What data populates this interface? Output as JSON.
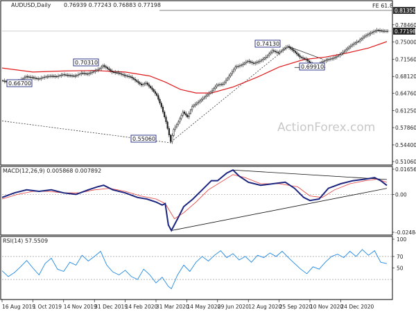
{
  "chart_data": [
    {
      "type": "candlestick",
      "symbol_timeframe": "AUDUSD,Daily",
      "ohlc_header": "0.76939 0.77243 0.76883 0.77198",
      "last_price": "0.77198",
      "fib_label": "FE 61.8",
      "fib_level": "0.81350",
      "price_ticks": [
        "0.81350",
        "0.78460",
        "0.75000",
        "0.71560",
        "0.68120",
        "0.64760",
        "0.61250",
        "0.57860",
        "0.54400",
        "0.51060"
      ],
      "ylim": [
        0.5106,
        0.8135
      ],
      "annotations": [
        {
          "text": "0.66700",
          "value": 0.667
        },
        {
          "text": "0.70310",
          "value": 0.7031
        },
        {
          "text": "0.55060",
          "value": 0.5506
        },
        {
          "text": "0.74130",
          "value": 0.7413
        },
        {
          "text": "0.69910",
          "value": 0.6991
        }
      ],
      "watermark": "ActionForex.com",
      "price_path": [
        [
          0,
          0.673
        ],
        [
          4,
          0.67
        ],
        [
          8,
          0.667
        ],
        [
          12,
          0.673
        ],
        [
          16,
          0.681
        ],
        [
          20,
          0.679
        ],
        [
          24,
          0.676
        ],
        [
          28,
          0.68
        ],
        [
          32,
          0.682
        ],
        [
          36,
          0.681
        ],
        [
          40,
          0.685
        ],
        [
          44,
          0.683
        ],
        [
          48,
          0.682
        ],
        [
          52,
          0.688
        ],
        [
          56,
          0.686
        ],
        [
          60,
          0.691
        ],
        [
          64,
          0.697
        ],
        [
          66,
          0.703
        ],
        [
          68,
          0.699
        ],
        [
          72,
          0.69
        ],
        [
          76,
          0.688
        ],
        [
          80,
          0.683
        ],
        [
          84,
          0.68
        ],
        [
          88,
          0.671
        ],
        [
          91,
          0.664
        ],
        [
          94,
          0.668
        ],
        [
          98,
          0.655
        ],
        [
          101,
          0.643
        ],
        [
          104,
          0.62
        ],
        [
          107,
          0.59
        ],
        [
          110,
          0.5506
        ],
        [
          112,
          0.575
        ],
        [
          115,
          0.59
        ],
        [
          118,
          0.61
        ],
        [
          121,
          0.6
        ],
        [
          124,
          0.621
        ],
        [
          128,
          0.63
        ],
        [
          132,
          0.64
        ],
        [
          136,
          0.65
        ],
        [
          140,
          0.664
        ],
        [
          144,
          0.666
        ],
        [
          148,
          0.682
        ],
        [
          152,
          0.7
        ],
        [
          156,
          0.704
        ],
        [
          160,
          0.712
        ],
        [
          164,
          0.707
        ],
        [
          168,
          0.712
        ],
        [
          172,
          0.72
        ],
        [
          176,
          0.733
        ],
        [
          180,
          0.728
        ],
        [
          184,
          0.738
        ],
        [
          186,
          0.7413
        ],
        [
          190,
          0.732
        ],
        [
          194,
          0.72
        ],
        [
          198,
          0.715
        ],
        [
          202,
          0.704
        ],
        [
          205,
          0.6991
        ],
        [
          208,
          0.71
        ],
        [
          212,
          0.715
        ],
        [
          216,
          0.718
        ],
        [
          220,
          0.725
        ],
        [
          224,
          0.735
        ],
        [
          228,
          0.745
        ],
        [
          232,
          0.752
        ],
        [
          236,
          0.762
        ],
        [
          240,
          0.768
        ],
        [
          244,
          0.774
        ],
        [
          248,
          0.772
        ],
        [
          250,
          0.772
        ]
      ],
      "ma_path": [
        [
          0,
          0.698
        ],
        [
          20,
          0.69
        ],
        [
          40,
          0.692
        ],
        [
          60,
          0.693
        ],
        [
          80,
          0.69
        ],
        [
          96,
          0.682
        ],
        [
          106,
          0.67
        ],
        [
          116,
          0.655
        ],
        [
          126,
          0.648
        ],
        [
          136,
          0.648
        ],
        [
          150,
          0.66
        ],
        [
          166,
          0.68
        ],
        [
          180,
          0.7
        ],
        [
          196,
          0.715
        ],
        [
          210,
          0.72
        ],
        [
          224,
          0.728
        ],
        [
          238,
          0.738
        ],
        [
          250,
          0.751
        ]
      ],
      "trend_lines": [
        {
          "from": [
            0,
            0.592
          ],
          "to": [
            110,
            0.548
          ],
          "style": "dashed"
        },
        {
          "from": [
            110,
            0.5506
          ],
          "to": [
            186,
            0.7413
          ],
          "style": "dashed"
        },
        {
          "from": [
            186,
            0.7413
          ],
          "to": [
            208,
            0.716
          ],
          "style": "solid"
        },
        {
          "from": [
            190,
            0.6991
          ],
          "to": [
            210,
            0.6991
          ],
          "style": "solid"
        }
      ],
      "x_range": [
        0,
        250
      ]
    },
    {
      "type": "line",
      "label": "MACD(12,26,9) 0.005868 0.007892",
      "ticks": [
        "0.016567",
        "0.00",
        "-0.02484"
      ],
      "ylim": [
        -0.02484,
        0.016567
      ],
      "macd": [
        [
          0,
          -0.002
        ],
        [
          8,
          0.001
        ],
        [
          16,
          0.003
        ],
        [
          24,
          0.002
        ],
        [
          32,
          0.003
        ],
        [
          40,
          0.001
        ],
        [
          48,
          0.0
        ],
        [
          56,
          0.003
        ],
        [
          62,
          0.005
        ],
        [
          66,
          0.006
        ],
        [
          72,
          0.003
        ],
        [
          80,
          0.001
        ],
        [
          88,
          -0.002
        ],
        [
          94,
          -0.003
        ],
        [
          100,
          -0.005
        ],
        [
          104,
          -0.007
        ],
        [
          106,
          -0.006
        ],
        [
          108,
          -0.02
        ],
        [
          110,
          -0.0237
        ],
        [
          114,
          -0.016
        ],
        [
          118,
          -0.008
        ],
        [
          124,
          -0.003
        ],
        [
          130,
          0.003
        ],
        [
          136,
          0.009
        ],
        [
          140,
          0.009
        ],
        [
          146,
          0.014
        ],
        [
          150,
          0.016
        ],
        [
          154,
          0.012
        ],
        [
          160,
          0.008
        ],
        [
          168,
          0.006
        ],
        [
          176,
          0.007
        ],
        [
          184,
          0.008
        ],
        [
          190,
          0.004
        ],
        [
          196,
          -0.002
        ],
        [
          200,
          -0.004
        ],
        [
          206,
          -0.003
        ],
        [
          212,
          0.004
        ],
        [
          220,
          0.007
        ],
        [
          228,
          0.009
        ],
        [
          236,
          0.01
        ],
        [
          242,
          0.011
        ],
        [
          246,
          0.009
        ],
        [
          250,
          0.0059
        ]
      ],
      "signal": [
        [
          0,
          -0.003
        ],
        [
          10,
          0.0
        ],
        [
          20,
          0.002
        ],
        [
          30,
          0.002
        ],
        [
          40,
          0.001
        ],
        [
          50,
          0.001
        ],
        [
          60,
          0.003
        ],
        [
          70,
          0.004
        ],
        [
          80,
          0.002
        ],
        [
          90,
          -0.001
        ],
        [
          100,
          -0.003
        ],
        [
          106,
          -0.006
        ],
        [
          112,
          -0.016
        ],
        [
          118,
          -0.012
        ],
        [
          126,
          -0.005
        ],
        [
          134,
          0.003
        ],
        [
          142,
          0.008
        ],
        [
          150,
          0.013
        ],
        [
          158,
          0.011
        ],
        [
          168,
          0.007
        ],
        [
          180,
          0.007
        ],
        [
          192,
          0.005
        ],
        [
          200,
          -0.001
        ],
        [
          208,
          -0.002
        ],
        [
          216,
          0.003
        ],
        [
          226,
          0.007
        ],
        [
          236,
          0.009
        ],
        [
          244,
          0.01
        ],
        [
          250,
          0.0079
        ]
      ],
      "trend_lines": [
        {
          "from": [
            110,
            -0.0237
          ],
          "to": [
            250,
            0.004
          ]
        },
        {
          "from": [
            150,
            0.016
          ],
          "to": [
            250,
            0.0098
          ]
        }
      ],
      "x_range": [
        0,
        250
      ]
    },
    {
      "type": "line",
      "label": "RSI(14) 57.5509",
      "ticks": [
        "100",
        "70",
        "50",
        "0"
      ],
      "ylim": [
        0,
        100
      ],
      "rsi": [
        [
          0,
          45
        ],
        [
          4,
          35
        ],
        [
          8,
          42
        ],
        [
          12,
          52
        ],
        [
          16,
          63
        ],
        [
          20,
          50
        ],
        [
          24,
          38
        ],
        [
          28,
          58
        ],
        [
          32,
          67
        ],
        [
          36,
          48
        ],
        [
          40,
          44
        ],
        [
          44,
          60
        ],
        [
          48,
          55
        ],
        [
          52,
          72
        ],
        [
          56,
          62
        ],
        [
          60,
          70
        ],
        [
          64,
          79
        ],
        [
          68,
          55
        ],
        [
          72,
          43
        ],
        [
          76,
          38
        ],
        [
          80,
          46
        ],
        [
          84,
          35
        ],
        [
          88,
          30
        ],
        [
          92,
          48
        ],
        [
          96,
          38
        ],
        [
          100,
          24
        ],
        [
          104,
          34
        ],
        [
          108,
          18
        ],
        [
          110,
          14
        ],
        [
          114,
          38
        ],
        [
          118,
          55
        ],
        [
          122,
          44
        ],
        [
          126,
          60
        ],
        [
          130,
          70
        ],
        [
          134,
          62
        ],
        [
          138,
          72
        ],
        [
          142,
          80
        ],
        [
          146,
          68
        ],
        [
          150,
          75
        ],
        [
          154,
          64
        ],
        [
          158,
          70
        ],
        [
          162,
          60
        ],
        [
          166,
          72
        ],
        [
          170,
          68
        ],
        [
          174,
          76
        ],
        [
          178,
          70
        ],
        [
          182,
          79
        ],
        [
          186,
          68
        ],
        [
          190,
          58
        ],
        [
          194,
          48
        ],
        [
          198,
          40
        ],
        [
          202,
          52
        ],
        [
          206,
          48
        ],
        [
          210,
          60
        ],
        [
          214,
          70
        ],
        [
          218,
          74
        ],
        [
          222,
          68
        ],
        [
          226,
          79
        ],
        [
          230,
          70
        ],
        [
          234,
          82
        ],
        [
          238,
          72
        ],
        [
          242,
          80
        ],
        [
          246,
          60
        ],
        [
          250,
          57.55
        ]
      ],
      "x_range": [
        0,
        250
      ]
    }
  ],
  "x_ticks": [
    {
      "x": 0,
      "label": "16 Aug 2019"
    },
    {
      "x": 20,
      "label": "1 Oct 2019"
    },
    {
      "x": 40,
      "label": "14 Nov 2019"
    },
    {
      "x": 60,
      "label": "31 Dec 2019"
    },
    {
      "x": 80,
      "label": "14 Feb 2020"
    },
    {
      "x": 100,
      "label": "31 Mar 2020"
    },
    {
      "x": 120,
      "label": "14 May 2020"
    },
    {
      "x": 140,
      "label": "29 Jun 2020"
    },
    {
      "x": 160,
      "label": "12 Aug 2020"
    },
    {
      "x": 180,
      "label": "25 Sep 2020"
    },
    {
      "x": 200,
      "label": "10 Nov 2020"
    },
    {
      "x": 220,
      "label": "24 Dec 2020"
    }
  ]
}
